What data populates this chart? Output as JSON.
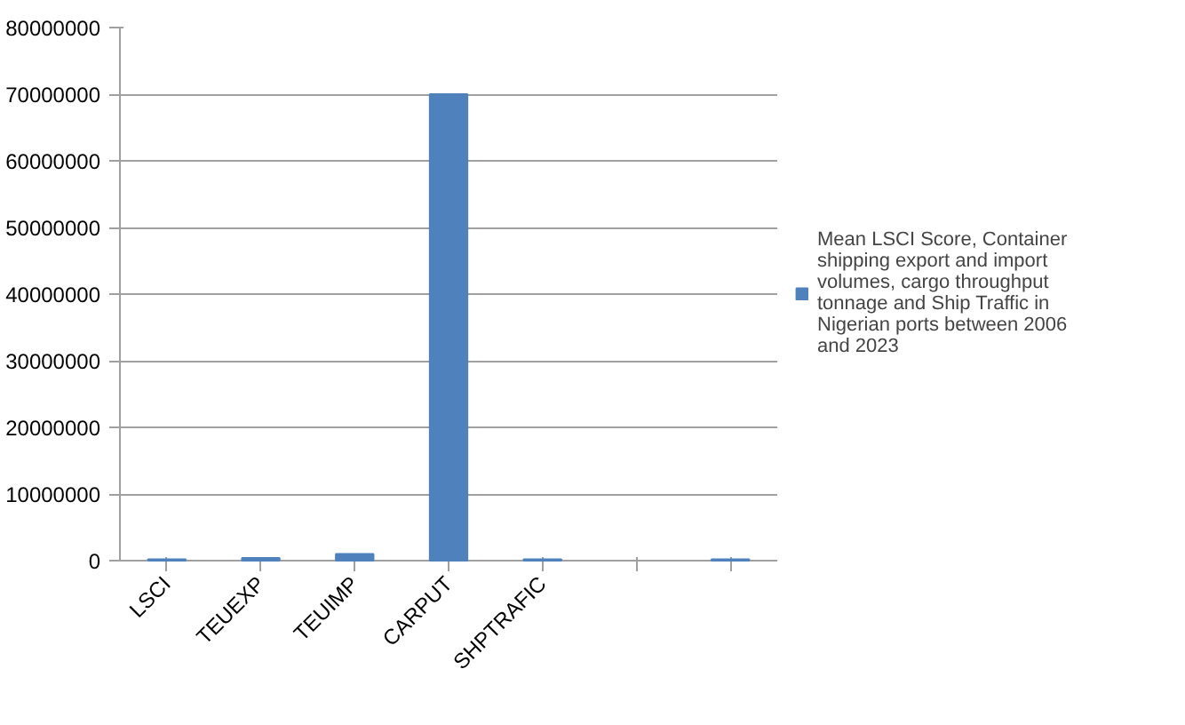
{
  "chart_data": {
    "type": "bar",
    "categories": [
      "LSCI",
      "TEUEXP",
      "TEUIMP",
      "CARPUT",
      "SHPTRAFIC",
      null,
      null
    ],
    "series": [
      {
        "name": "Mean LSCI Score, Container shipping export and import volumes, cargo throughput tonnage and Ship Traffic in Nigerian ports between 2006 and 2023",
        "color": "#4f81bd",
        "values": [
          200000,
          400000,
          1000000,
          70000000,
          200000,
          null,
          200000
        ]
      }
    ],
    "ylim": [
      0,
      80000000
    ],
    "yticks": [
      0,
      10000000,
      20000000,
      30000000,
      40000000,
      50000000,
      60000000,
      70000000,
      80000000
    ],
    "grid": "y",
    "legend": "right"
  }
}
